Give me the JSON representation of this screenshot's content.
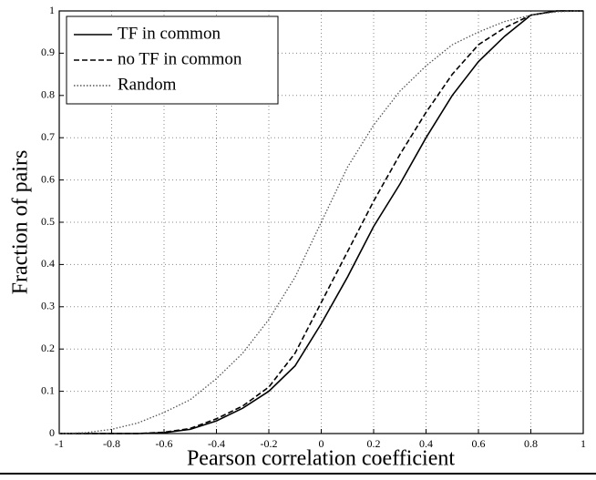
{
  "chart_data": {
    "type": "line",
    "xlabel": "Pearson correlation coefficient",
    "ylabel": "Fraction of pairs",
    "x": [
      -1,
      -0.9,
      -0.8,
      -0.7,
      -0.6,
      -0.5,
      -0.4,
      -0.3,
      -0.2,
      -0.1,
      0,
      0.1,
      0.2,
      0.3,
      0.4,
      0.5,
      0.6,
      0.7,
      0.8,
      0.9,
      1
    ],
    "series": [
      {
        "name": "TF in common",
        "color": "#000000",
        "linestyle": "solid",
        "values": [
          0,
          0,
          0,
          0,
          0.002,
          0.01,
          0.03,
          0.06,
          0.1,
          0.16,
          0.26,
          0.37,
          0.49,
          0.59,
          0.7,
          0.8,
          0.88,
          0.94,
          0.99,
          1,
          1
        ]
      },
      {
        "name": "no TF in common",
        "color": "#000000",
        "linestyle": "dashed",
        "values": [
          0,
          0,
          0,
          0,
          0.003,
          0.012,
          0.035,
          0.065,
          0.11,
          0.19,
          0.31,
          0.43,
          0.55,
          0.66,
          0.76,
          0.85,
          0.92,
          0.96,
          0.99,
          1,
          1
        ]
      },
      {
        "name": "Random",
        "color": "#555555",
        "linestyle": "dotted",
        "values": [
          0,
          0.002,
          0.01,
          0.025,
          0.05,
          0.08,
          0.13,
          0.19,
          0.27,
          0.37,
          0.5,
          0.63,
          0.73,
          0.81,
          0.87,
          0.92,
          0.95,
          0.975,
          0.99,
          0.998,
          1
        ]
      }
    ],
    "xlim": [
      -1,
      1
    ],
    "xticks": [
      -1,
      -0.8,
      -0.6,
      -0.4,
      -0.2,
      0,
      0.2,
      0.4,
      0.6,
      0.8,
      1
    ],
    "ylim": [
      0,
      1
    ],
    "yticks": [
      0,
      0.1,
      0.2,
      0.3,
      0.4,
      0.5,
      0.6,
      0.7,
      0.8,
      0.9,
      1
    ],
    "grid": true,
    "legend": "upper left"
  }
}
